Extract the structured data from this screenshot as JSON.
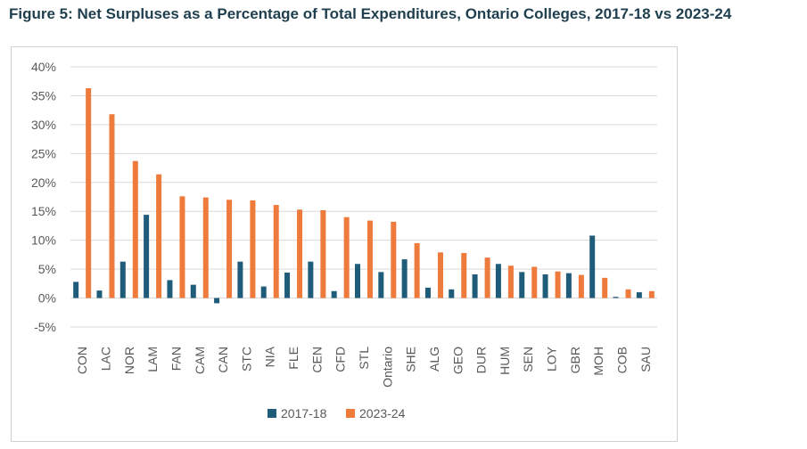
{
  "figure": {
    "title": "Figure 5: Net Surpluses as a Percentage of Total Expenditures, Ontario Colleges, 2017-18 vs 2023-24"
  },
  "chart_data": {
    "type": "bar",
    "title": "Figure 5: Net Surpluses as a Percentage of Total Expenditures, Ontario Colleges, 2017-18 vs 2023-24",
    "xlabel": "",
    "ylabel": "",
    "ylim": [
      -5,
      40
    ],
    "yticks": [
      -5,
      0,
      5,
      10,
      15,
      20,
      25,
      30,
      35,
      40
    ],
    "ytick_labels": [
      "-5%",
      "0%",
      "5%",
      "10%",
      "15%",
      "20%",
      "25%",
      "30%",
      "35%",
      "40%"
    ],
    "grid": true,
    "legend_position": "bottom",
    "categories": [
      "CON",
      "LAC",
      "NOR",
      "LAM",
      "FAN",
      "CAM",
      "CAN",
      "STC",
      "NIA",
      "FLE",
      "CEN",
      "CFD",
      "STL",
      "Ontario",
      "SHE",
      "ALG",
      "GEO",
      "DUR",
      "HUM",
      "SEN",
      "LOY",
      "GBR",
      "MOH",
      "COB",
      "SAU"
    ],
    "series": [
      {
        "name": "2017-18",
        "color": "#1f5c7a",
        "values": [
          2.8,
          1.3,
          6.3,
          14.4,
          3.1,
          2.3,
          -0.9,
          6.3,
          2.0,
          4.4,
          6.3,
          1.2,
          5.9,
          4.5,
          6.7,
          1.8,
          1.5,
          4.1,
          5.9,
          4.5,
          4.1,
          4.3,
          10.8,
          0.2,
          1.0
        ]
      },
      {
        "name": "2023-24",
        "color": "#ee7a3b",
        "values": [
          36.3,
          31.8,
          23.7,
          21.4,
          17.6,
          17.4,
          17.0,
          16.9,
          16.1,
          15.3,
          15.2,
          14.0,
          13.4,
          13.2,
          9.5,
          7.9,
          7.8,
          7.0,
          5.6,
          5.4,
          4.6,
          4.0,
          3.5,
          1.5,
          1.2
        ]
      }
    ]
  }
}
